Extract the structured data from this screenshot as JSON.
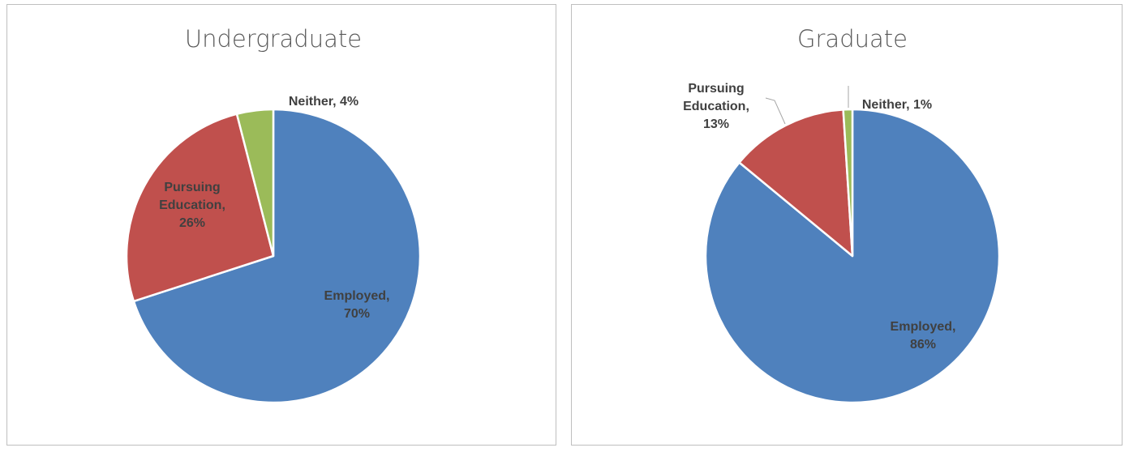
{
  "chart_data": [
    {
      "type": "pie",
      "title": "Undergraduate",
      "categories": [
        "Employed",
        "Pursuing Education",
        "Neither"
      ],
      "values": [
        70,
        26,
        4
      ],
      "value_labels": [
        "Employed, 70%",
        "Pursuing Education, 26%",
        "Neither, 4%"
      ],
      "colors": [
        "#4f81bd",
        "#c0504d",
        "#9bbb59"
      ]
    },
    {
      "type": "pie",
      "title": "Graduate",
      "categories": [
        "Employed",
        "Pursuing Education",
        "Neither"
      ],
      "values": [
        86,
        13,
        1
      ],
      "value_labels": [
        "Employed, 86%",
        "Pursuing Education, 13%",
        "Neither, 1%"
      ],
      "colors": [
        "#4f81bd",
        "#c0504d",
        "#9bbb59"
      ]
    }
  ]
}
